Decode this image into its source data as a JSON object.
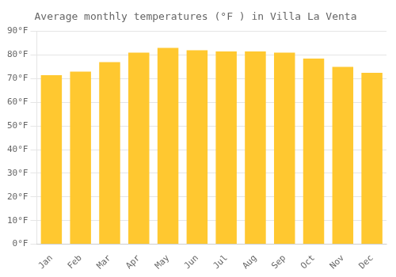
{
  "chart_data": {
    "type": "bar",
    "title": "Average monthly temperatures (°F ) in Villa La Venta",
    "categories": [
      "Jan",
      "Feb",
      "Mar",
      "Apr",
      "May",
      "Jun",
      "Jul",
      "Aug",
      "Sep",
      "Oct",
      "Nov",
      "Dec"
    ],
    "values": [
      71.5,
      73.0,
      77.0,
      81.0,
      83.0,
      82.0,
      81.5,
      81.5,
      81.0,
      78.5,
      75.0,
      72.5
    ],
    "color": "#FFC830",
    "ylim": [
      0,
      90
    ],
    "yticks": [
      {
        "value": 0,
        "label": "0°F"
      },
      {
        "value": 10,
        "label": "10°F"
      },
      {
        "value": 20,
        "label": "20°F"
      },
      {
        "value": 30,
        "label": "30°F"
      },
      {
        "value": 40,
        "label": "40°F"
      },
      {
        "value": 50,
        "label": "50°F"
      },
      {
        "value": 60,
        "label": "60°F"
      },
      {
        "value": 70,
        "label": "70°F"
      },
      {
        "value": 80,
        "label": "80°F"
      },
      {
        "value": 90,
        "label": "90°F"
      }
    ],
    "grid": true
  }
}
